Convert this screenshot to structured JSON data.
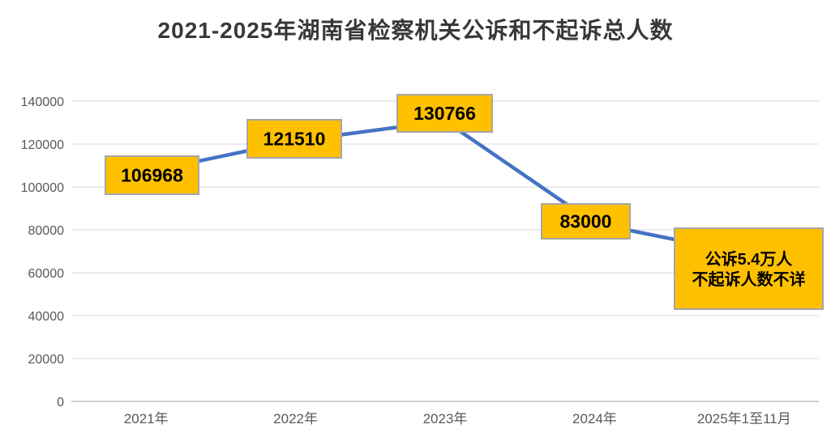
{
  "chart_data": {
    "type": "line",
    "title": "2021-2025年湖南省检察机关公诉和不起诉总人数",
    "categories": [
      "2021年",
      "2022年",
      "2023年",
      "2024年",
      "2025年1至11月"
    ],
    "series": [
      {
        "values": [
          106968,
          121510,
          130766,
          83000,
          null
        ]
      }
    ],
    "point_labels": [
      "106968",
      "121510",
      "130766",
      "83000",
      null
    ],
    "last_point_annotation_lines": [
      "公诉5.4万人",
      "不起诉人数不详"
    ],
    "last_point_line_end_estimate": 69000,
    "xlabel": "",
    "ylabel": "",
    "ylim": [
      0,
      140000
    ],
    "ytick_step": 20000,
    "yticks": [
      0,
      20000,
      40000,
      60000,
      80000,
      100000,
      120000,
      140000
    ],
    "grid": true,
    "legend": "none",
    "colors": {
      "line": "#4472C4",
      "label_fill": "#FFC000",
      "label_border": "#A6A6A6",
      "label_text": "#000000",
      "grid": "#D9D9D9",
      "axis_line": "#BFBFBF",
      "axis_text": "#595959",
      "title": "#383838",
      "background": "#FFFFFF"
    }
  }
}
